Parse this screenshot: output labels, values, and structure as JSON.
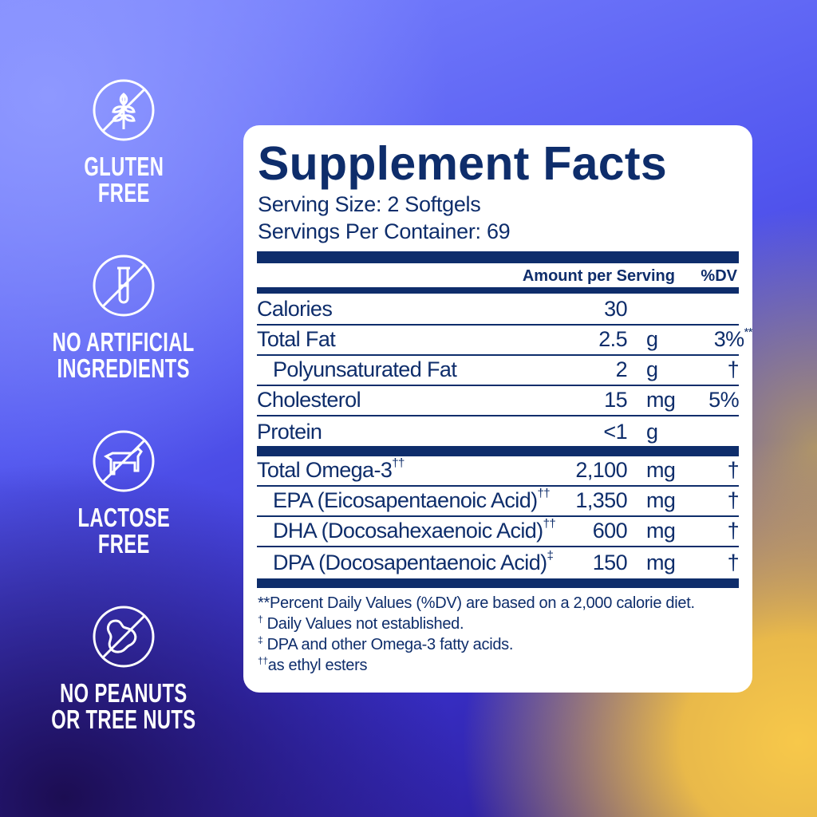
{
  "badges": [
    {
      "icon": "no-gluten-wheat-icon",
      "line1": "GLUTEN",
      "line2": "FREE"
    },
    {
      "icon": "no-artificial-test-tube-icon",
      "line1": "NO ARTIFICIAL",
      "line2": "INGREDIENTS"
    },
    {
      "icon": "no-lactose-cow-icon",
      "line1": "LACTOSE",
      "line2": "FREE"
    },
    {
      "icon": "no-peanut-icon",
      "line1": "NO PEANUTS",
      "line2": "OR TREE NUTS"
    }
  ],
  "facts": {
    "title": "Supplement Facts",
    "serving_size": "Serving Size: 2 Softgels",
    "servings_per_container": "Servings Per Container: 69",
    "header_amount": "Amount per Serving",
    "header_dv": "%DV",
    "rows": [
      {
        "name": "Calories",
        "sup": "",
        "amount": "30",
        "unit": "",
        "dv": "",
        "dv_sup": ""
      },
      {
        "name": "Total Fat",
        "sup": "",
        "amount": "2.5",
        "unit": "g",
        "dv": "3%",
        "dv_sup": "**"
      },
      {
        "name": "Polyunsaturated Fat",
        "sup": "",
        "amount": "2",
        "unit": "g",
        "dv": "†",
        "dv_sup": ""
      },
      {
        "name": "Cholesterol",
        "sup": "",
        "amount": "15",
        "unit": "mg",
        "dv": "5%",
        "dv_sup": ""
      },
      {
        "name": "Protein",
        "sup": "",
        "amount": "<1",
        "unit": "g",
        "dv": "",
        "dv_sup": ""
      }
    ],
    "omega_rows": [
      {
        "name": "Total Omega-3",
        "sup": "††",
        "amount": "2,100",
        "unit": "mg",
        "dv": "†"
      },
      {
        "name": "EPA (Eicosapentaenoic Acid)",
        "sup": "††",
        "amount": "1,350",
        "unit": "mg",
        "dv": "†"
      },
      {
        "name": "DHA (Docosahexaenoic Acid)",
        "sup": "††",
        "amount": "600",
        "unit": "mg",
        "dv": "†"
      },
      {
        "name": "DPA (Docosapentaenoic Acid)",
        "sup": "‡",
        "amount": "150",
        "unit": "mg",
        "dv": "†"
      }
    ],
    "footnotes": [
      {
        "mark": "",
        "text": "**Percent Daily Values (%DV) are based on a 2,000 calorie diet."
      },
      {
        "mark": "†",
        "text": " Daily Values not established."
      },
      {
        "mark": "‡",
        "text": " DPA and other Omega-3 fatty acids."
      },
      {
        "mark": "††",
        "text": "as ethyl esters"
      }
    ]
  },
  "colors": {
    "navy": "#0e2d6b",
    "panel": "#ffffff",
    "badge_text": "#ffffff"
  }
}
